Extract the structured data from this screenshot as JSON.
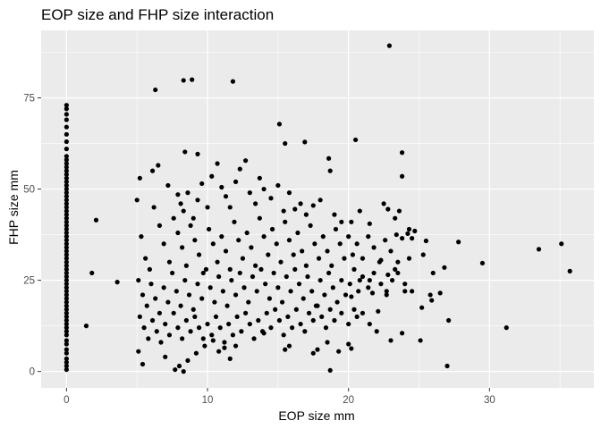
{
  "chart_data": {
    "type": "scatter",
    "title": "EOP size and FHP size interaction",
    "xlabel": "EOP size mm",
    "ylabel": "FHP size mm",
    "xlim": [
      -1.8,
      37.4
    ],
    "ylim": [
      -4.5,
      93.5
    ],
    "x_ticks": [
      0,
      10,
      20,
      30
    ],
    "y_ticks": [
      0,
      25,
      50,
      75
    ],
    "x_tick_labels": [
      "0",
      "10",
      "20",
      "30"
    ],
    "y_tick_labels": [
      "0",
      "25",
      "50",
      "75"
    ],
    "grid": true,
    "panel_background": "#ebebeb",
    "grid_color": "#ffffff",
    "point_color": "#000000",
    "points": [
      [
        0,
        0.5
      ],
      [
        0,
        1.5
      ],
      [
        0,
        2.5
      ],
      [
        0,
        3.5
      ],
      [
        0,
        5
      ],
      [
        0,
        6
      ],
      [
        0,
        7.5
      ],
      [
        0,
        8.5
      ],
      [
        0,
        10
      ],
      [
        0,
        11
      ],
      [
        0,
        12
      ],
      [
        0,
        13
      ],
      [
        0,
        14
      ],
      [
        0,
        15
      ],
      [
        0,
        16
      ],
      [
        0,
        17
      ],
      [
        0,
        18
      ],
      [
        0,
        19
      ],
      [
        0,
        20
      ],
      [
        0,
        21
      ],
      [
        0,
        22
      ],
      [
        0,
        23
      ],
      [
        0,
        24
      ],
      [
        0,
        25
      ],
      [
        0,
        26
      ],
      [
        0,
        27
      ],
      [
        0,
        28
      ],
      [
        0,
        29
      ],
      [
        0,
        30
      ],
      [
        0,
        31
      ],
      [
        0,
        32
      ],
      [
        0,
        33
      ],
      [
        0,
        34
      ],
      [
        0,
        35
      ],
      [
        0,
        36
      ],
      [
        0,
        37
      ],
      [
        0,
        38
      ],
      [
        0,
        39
      ],
      [
        0,
        40
      ],
      [
        0,
        41
      ],
      [
        0,
        42
      ],
      [
        0,
        43
      ],
      [
        0,
        44
      ],
      [
        0,
        45
      ],
      [
        0,
        46
      ],
      [
        0,
        47
      ],
      [
        0,
        48
      ],
      [
        0,
        49
      ],
      [
        0,
        50
      ],
      [
        0,
        51
      ],
      [
        0,
        52
      ],
      [
        0,
        53
      ],
      [
        0,
        54
      ],
      [
        0,
        55
      ],
      [
        0,
        56
      ],
      [
        0,
        57
      ],
      [
        0,
        58
      ],
      [
        0,
        59
      ],
      [
        0,
        61
      ],
      [
        0,
        63
      ],
      [
        0,
        65
      ],
      [
        0,
        67
      ],
      [
        0,
        69
      ],
      [
        0,
        70.5
      ],
      [
        0,
        72
      ],
      [
        0,
        73
      ],
      [
        1.4,
        12.5
      ],
      [
        1.8,
        27
      ],
      [
        2.1,
        41.5
      ],
      [
        3.6,
        24.5
      ],
      [
        22.9,
        89.3
      ],
      [
        6.3,
        77.2
      ],
      [
        8.3,
        79.8
      ],
      [
        8.9,
        80
      ],
      [
        11.8,
        79.5
      ],
      [
        15.1,
        67.8
      ],
      [
        15.5,
        62.5
      ],
      [
        16.9,
        62.9
      ],
      [
        20.5,
        63.5
      ],
      [
        23.8,
        60
      ],
      [
        8.4,
        60.2
      ],
      [
        9.3,
        59.6
      ],
      [
        18.6,
        58.4
      ],
      [
        5.2,
        53
      ],
      [
        6.1,
        55
      ],
      [
        6.5,
        56.5
      ],
      [
        7.2,
        51
      ],
      [
        7.9,
        48.5
      ],
      [
        8.1,
        46
      ],
      [
        8.3,
        44
      ],
      [
        8.6,
        49
      ],
      [
        9,
        42
      ],
      [
        9.3,
        47
      ],
      [
        9.6,
        51.5
      ],
      [
        10,
        45
      ],
      [
        10.3,
        53.5
      ],
      [
        10.7,
        57
      ],
      [
        11,
        50.5
      ],
      [
        11.3,
        48
      ],
      [
        11.6,
        45
      ],
      [
        12,
        52
      ],
      [
        12.3,
        55.5
      ],
      [
        12.7,
        57.8
      ],
      [
        13,
        49
      ],
      [
        13.4,
        46
      ],
      [
        13.7,
        53
      ],
      [
        14,
        50
      ],
      [
        14.5,
        47.5
      ],
      [
        15,
        51
      ],
      [
        15.4,
        44
      ],
      [
        15.8,
        49
      ],
      [
        16.2,
        44.5
      ],
      [
        16.6,
        46
      ],
      [
        17,
        43
      ],
      [
        17.5,
        45.5
      ],
      [
        18,
        47
      ],
      [
        18.7,
        55
      ],
      [
        19,
        43
      ],
      [
        19.5,
        41
      ],
      [
        20.2,
        41
      ],
      [
        20.8,
        44
      ],
      [
        21.5,
        40.5
      ],
      [
        22.5,
        46
      ],
      [
        22.8,
        44.5
      ],
      [
        23.3,
        42
      ],
      [
        23.8,
        53.5
      ],
      [
        24.3,
        39
      ],
      [
        23.6,
        44
      ],
      [
        5,
        47
      ],
      [
        5.3,
        37
      ],
      [
        5.6,
        31
      ],
      [
        5.9,
        28
      ],
      [
        6.2,
        45
      ],
      [
        6.6,
        40
      ],
      [
        6.9,
        35
      ],
      [
        7.3,
        30
      ],
      [
        7.6,
        42
      ],
      [
        7.9,
        38
      ],
      [
        8.2,
        34
      ],
      [
        8.5,
        29
      ],
      [
        8.8,
        40
      ],
      [
        9.1,
        36
      ],
      [
        9.4,
        32
      ],
      [
        9.7,
        27
      ],
      [
        10.1,
        39
      ],
      [
        10.4,
        35
      ],
      [
        10.7,
        30
      ],
      [
        11,
        37
      ],
      [
        11.3,
        33
      ],
      [
        11.6,
        28
      ],
      [
        11.9,
        41
      ],
      [
        12.2,
        36
      ],
      [
        12.5,
        31
      ],
      [
        12.8,
        38
      ],
      [
        13.1,
        34
      ],
      [
        13.4,
        29
      ],
      [
        13.7,
        42
      ],
      [
        14,
        37
      ],
      [
        14.3,
        32
      ],
      [
        14.6,
        39
      ],
      [
        14.9,
        35
      ],
      [
        15.2,
        30
      ],
      [
        15.5,
        41
      ],
      [
        15.8,
        36
      ],
      [
        16.1,
        32
      ],
      [
        16.4,
        38
      ],
      [
        16.7,
        33
      ],
      [
        17,
        29
      ],
      [
        17.3,
        40
      ],
      [
        17.6,
        35
      ],
      [
        17.9,
        31
      ],
      [
        18.2,
        37
      ],
      [
        18.5,
        33
      ],
      [
        18.8,
        29
      ],
      [
        19.1,
        39
      ],
      [
        19.4,
        35
      ],
      [
        19.7,
        31
      ],
      [
        20,
        37
      ],
      [
        20.3,
        32
      ],
      [
        20.6,
        35
      ],
      [
        21,
        31
      ],
      [
        21.4,
        37
      ],
      [
        21.8,
        34
      ],
      [
        22.2,
        30
      ],
      [
        22.6,
        36
      ],
      [
        23,
        33
      ],
      [
        23.4,
        37.5
      ],
      [
        23.8,
        36.5
      ],
      [
        24.2,
        37.8
      ],
      [
        24.7,
        38.5
      ],
      [
        5.1,
        25
      ],
      [
        5.4,
        21
      ],
      [
        5.7,
        18
      ],
      [
        6,
        24
      ],
      [
        6.3,
        20
      ],
      [
        6.6,
        16
      ],
      [
        6.9,
        23
      ],
      [
        7.2,
        19
      ],
      [
        7.5,
        27
      ],
      [
        7.8,
        22
      ],
      [
        8.1,
        18
      ],
      [
        8.4,
        25
      ],
      [
        8.7,
        21
      ],
      [
        9,
        17
      ],
      [
        9.3,
        24
      ],
      [
        9.6,
        20
      ],
      [
        9.9,
        28
      ],
      [
        10.2,
        23
      ],
      [
        10.5,
        19
      ],
      [
        10.8,
        26
      ],
      [
        11.1,
        22
      ],
      [
        11.4,
        18
      ],
      [
        11.7,
        25
      ],
      [
        12,
        21
      ],
      [
        12.3,
        27
      ],
      [
        12.6,
        23
      ],
      [
        12.9,
        19
      ],
      [
        13.2,
        26
      ],
      [
        13.5,
        22
      ],
      [
        13.8,
        28
      ],
      [
        14.1,
        24
      ],
      [
        14.4,
        20
      ],
      [
        14.7,
        27
      ],
      [
        15,
        23
      ],
      [
        15.3,
        19
      ],
      [
        15.6,
        26
      ],
      [
        15.9,
        22
      ],
      [
        16.2,
        28
      ],
      [
        16.5,
        24
      ],
      [
        16.8,
        20
      ],
      [
        17.1,
        26
      ],
      [
        17.4,
        22
      ],
      [
        17.7,
        18
      ],
      [
        18,
        25
      ],
      [
        18.3,
        21
      ],
      [
        18.6,
        27
      ],
      [
        18.9,
        23
      ],
      [
        19.2,
        19
      ],
      [
        19.5,
        25
      ],
      [
        19.8,
        21
      ],
      [
        20.1,
        24
      ],
      [
        20.4,
        28
      ],
      [
        20.7,
        22
      ],
      [
        21,
        26
      ],
      [
        21.4,
        23
      ],
      [
        21.8,
        27
      ],
      [
        22.3,
        24
      ],
      [
        22.7,
        21
      ],
      [
        23.1,
        25
      ],
      [
        23.5,
        27
      ],
      [
        24,
        24
      ],
      [
        24.5,
        22
      ],
      [
        5.2,
        15
      ],
      [
        5.5,
        12
      ],
      [
        5.8,
        9
      ],
      [
        6.1,
        14
      ],
      [
        6.4,
        11
      ],
      [
        6.7,
        8
      ],
      [
        7,
        13
      ],
      [
        7.3,
        10
      ],
      [
        7.6,
        16
      ],
      [
        7.9,
        12
      ],
      [
        8.2,
        9
      ],
      [
        8.5,
        14
      ],
      [
        8.8,
        11
      ],
      [
        9.1,
        15
      ],
      [
        9.4,
        12
      ],
      [
        9.7,
        9
      ],
      [
        10,
        13
      ],
      [
        10.3,
        10
      ],
      [
        10.6,
        15
      ],
      [
        10.9,
        12
      ],
      [
        11.2,
        8
      ],
      [
        11.5,
        13
      ],
      [
        11.8,
        10
      ],
      [
        12.1,
        15
      ],
      [
        12.4,
        11
      ],
      [
        12.7,
        16
      ],
      [
        13,
        13
      ],
      [
        13.3,
        9
      ],
      [
        13.6,
        14
      ],
      [
        13.9,
        11
      ],
      [
        14.2,
        16
      ],
      [
        14.5,
        12
      ],
      [
        14.8,
        17
      ],
      [
        15.1,
        14
      ],
      [
        15.4,
        10
      ],
      [
        15.7,
        15
      ],
      [
        16,
        12
      ],
      [
        16.3,
        17
      ],
      [
        16.6,
        13
      ],
      [
        16.9,
        11
      ],
      [
        17.2,
        16
      ],
      [
        17.5,
        14
      ],
      [
        17.8,
        18
      ],
      [
        18.1,
        15
      ],
      [
        18.4,
        12
      ],
      [
        18.7,
        17
      ],
      [
        19,
        14
      ],
      [
        19.5,
        16
      ],
      [
        20,
        13
      ],
      [
        20.6,
        15
      ],
      [
        21.5,
        13
      ],
      [
        22,
        11
      ],
      [
        5.1,
        5.5
      ],
      [
        5.4,
        2
      ],
      [
        7,
        4
      ],
      [
        7.7,
        0.5
      ],
      [
        8,
        1.5
      ],
      [
        8.3,
        0
      ],
      [
        8.6,
        3
      ],
      [
        9.2,
        5
      ],
      [
        9.8,
        7
      ],
      [
        10.4,
        8.5
      ],
      [
        10.8,
        5.5
      ],
      [
        11.2,
        6.5
      ],
      [
        11.6,
        3.5
      ],
      [
        12,
        7
      ],
      [
        14,
        10.5
      ],
      [
        15.5,
        6
      ],
      [
        15.8,
        7
      ],
      [
        17.5,
        5
      ],
      [
        17.8,
        6
      ],
      [
        18.5,
        8
      ],
      [
        18.7,
        0.3
      ],
      [
        19.3,
        5.5
      ],
      [
        20,
        7.5
      ],
      [
        20.2,
        6.3
      ],
      [
        24.5,
        36.5
      ],
      [
        25.3,
        32
      ],
      [
        25.5,
        35.8
      ],
      [
        25.8,
        21
      ],
      [
        26,
        27
      ],
      [
        26.5,
        21.5
      ],
      [
        26.8,
        28.5
      ],
      [
        27.1,
        14
      ],
      [
        27.8,
        35.5
      ],
      [
        29.5,
        29.7
      ],
      [
        33.5,
        33.5
      ],
      [
        35.1,
        35
      ],
      [
        35.7,
        27.5
      ],
      [
        31.2,
        12
      ],
      [
        27,
        1.5
      ],
      [
        25.1,
        8.5
      ],
      [
        23.8,
        10.5
      ],
      [
        24,
        22
      ],
      [
        23,
        8.5
      ],
      [
        23.3,
        28
      ],
      [
        22.7,
        22
      ],
      [
        22.3,
        30.5
      ],
      [
        21.7,
        21.5
      ],
      [
        21,
        16
      ],
      [
        20.8,
        25
      ],
      [
        20.4,
        17
      ],
      [
        20.2,
        20.5
      ],
      [
        21.5,
        25
      ],
      [
        22.1,
        16.5
      ],
      [
        25.2,
        17.5
      ],
      [
        25.9,
        19.5
      ],
      [
        24.3,
        31
      ],
      [
        23.5,
        30
      ],
      [
        22.8,
        26.5
      ]
    ]
  }
}
